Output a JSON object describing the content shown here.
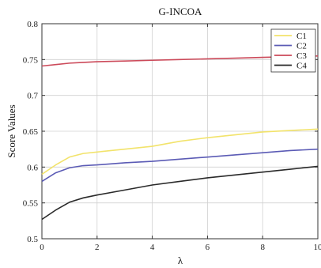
{
  "chart_data": {
    "type": "line",
    "title": "G-INCOA",
    "xlabel": "λ",
    "ylabel": "Score Values",
    "xlim": [
      0,
      10
    ],
    "ylim": [
      0.5,
      0.8
    ],
    "xticks": [
      0,
      2,
      4,
      6,
      8,
      10
    ],
    "xtick_labels": [
      "0",
      "2",
      "4",
      "6",
      "8",
      "10"
    ],
    "yticks": [
      0.5,
      0.55,
      0.6,
      0.65,
      0.7,
      0.75,
      0.8
    ],
    "ytick_labels": [
      "0.5",
      "0.55",
      "0.6",
      "0.65",
      "0.7",
      "0.75",
      "0.8"
    ],
    "grid": true,
    "legend_position": "top-right",
    "x": [
      0,
      0.5,
      1,
      1.5,
      2,
      3,
      4,
      5,
      6,
      7,
      8,
      9,
      10
    ],
    "series": [
      {
        "name": "C1",
        "color": "#f2e36b",
        "values": [
          0.59,
          0.603,
          0.614,
          0.619,
          0.621,
          0.625,
          0.629,
          0.636,
          0.641,
          0.645,
          0.649,
          0.651,
          0.653
        ]
      },
      {
        "name": "C2",
        "color": "#5b5bb5",
        "values": [
          0.58,
          0.592,
          0.599,
          0.602,
          0.603,
          0.606,
          0.608,
          0.611,
          0.614,
          0.617,
          0.62,
          0.623,
          0.625
        ]
      },
      {
        "name": "C3",
        "color": "#cc4a5a",
        "values": [
          0.741,
          0.743,
          0.745,
          0.746,
          0.747,
          0.748,
          0.749,
          0.75,
          0.751,
          0.752,
          0.753,
          0.754,
          0.755
        ]
      },
      {
        "name": "C4",
        "color": "#2a2a2a",
        "values": [
          0.527,
          0.54,
          0.551,
          0.557,
          0.561,
          0.568,
          0.575,
          0.58,
          0.585,
          0.589,
          0.593,
          0.597,
          0.601
        ]
      }
    ]
  }
}
